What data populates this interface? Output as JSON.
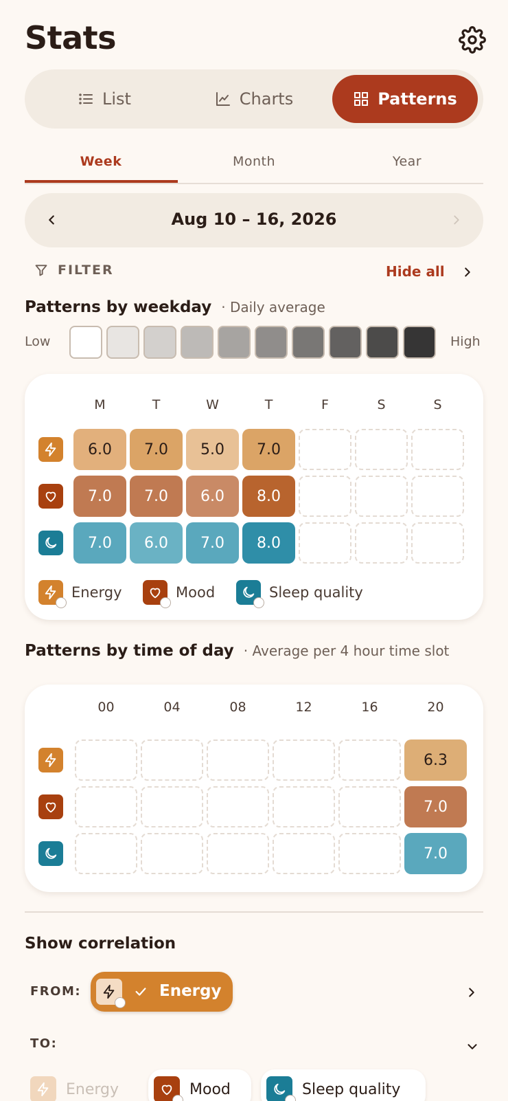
{
  "header": {
    "title": "Stats"
  },
  "view_switch": {
    "list": "List",
    "charts": "Charts",
    "patterns": "Patterns",
    "active": "patterns"
  },
  "tabs": {
    "week": "Week",
    "month": "Month",
    "year": "Year",
    "active": "week"
  },
  "date_range": "Aug 10 – 16, 2026",
  "filter": {
    "label": "FILTER",
    "hide_all": "Hide all"
  },
  "weekday": {
    "title": "Patterns by weekday",
    "subtitle": "· Daily average",
    "scale_low": "Low",
    "scale_high": "High",
    "scale_colors": [
      "#ffffff",
      "#e8e5e2",
      "#d3d0cd",
      "#bdbab7",
      "#a7a4a1",
      "#908d8b",
      "#797775",
      "#636160",
      "#4c4b4a",
      "#363535"
    ],
    "days": [
      "M",
      "T",
      "W",
      "T",
      "F",
      "S",
      "S"
    ],
    "rows": [
      {
        "metric": "energy",
        "values": [
          "6.0",
          "7.0",
          "5.0",
          "7.0",
          "",
          "",
          ""
        ]
      },
      {
        "metric": "mood",
        "values": [
          "7.0",
          "7.0",
          "6.0",
          "8.0",
          "",
          "",
          ""
        ]
      },
      {
        "metric": "sleep",
        "values": [
          "7.0",
          "6.0",
          "7.0",
          "8.0",
          "",
          "",
          ""
        ]
      }
    ],
    "legend": {
      "energy": "Energy",
      "mood": "Mood",
      "sleep": "Sleep quality"
    }
  },
  "timeofday": {
    "title": "Patterns by time of day",
    "subtitle": "· Average per 4 hour time slot",
    "slots": [
      "00",
      "04",
      "08",
      "12",
      "16",
      "20"
    ],
    "rows": [
      {
        "metric": "energy",
        "values": [
          "",
          "",
          "",
          "",
          "",
          "6.3"
        ]
      },
      {
        "metric": "mood",
        "values": [
          "",
          "",
          "",
          "",
          "",
          "7.0"
        ]
      },
      {
        "metric": "sleep",
        "values": [
          "",
          "",
          "",
          "",
          "",
          "7.0"
        ]
      }
    ]
  },
  "correlation": {
    "title": "Show correlation",
    "from_label": "FROM:",
    "from_selected": "Energy",
    "to_label": "TO:",
    "to_options": [
      "Energy",
      "Mood",
      "Sleep quality"
    ]
  },
  "colors": {
    "accent": "#ac3a1e",
    "energy": "#d3822d",
    "mood": "#a8400f",
    "sleep": "#1b7d96"
  }
}
